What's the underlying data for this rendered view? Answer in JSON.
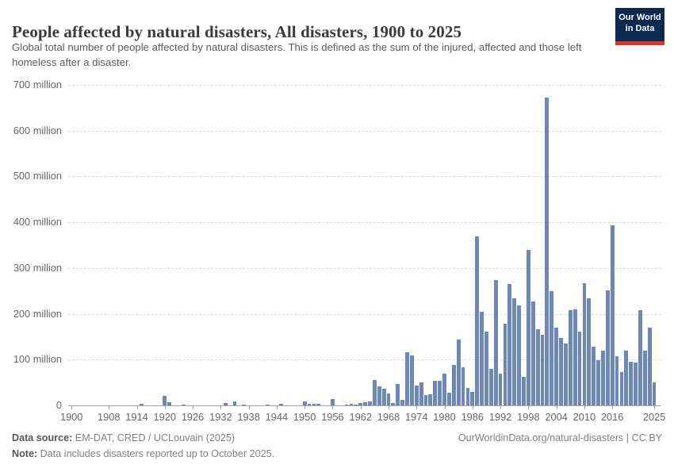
{
  "header": {
    "title": "People affected by natural disasters, All disasters, 1900 to 2025",
    "subtitle": "Global total number of people affected by natural disasters. This is defined as the sum of the injured, affected and those left homeless after a disaster.",
    "logo": {
      "line1": "Our World",
      "line2": "in Data"
    }
  },
  "chart_data": {
    "type": "bar",
    "title": "People affected by natural disasters, All disasters, 1900 to 2025",
    "unit": "million people",
    "xlabel": "",
    "ylabel": "",
    "ylim": [
      0,
      700
    ],
    "grid": "horizontal-dashed",
    "bar_color": "#6d87b6",
    "x_start": 1900,
    "x_end": 2025,
    "x_tick_years": [
      1900,
      1908,
      1914,
      1920,
      1926,
      1932,
      1938,
      1944,
      1950,
      1956,
      1962,
      1968,
      1974,
      1980,
      1986,
      1992,
      1998,
      2004,
      2010,
      2016,
      2025
    ],
    "y_ticks": [
      {
        "value": 0,
        "label": "0"
      },
      {
        "value": 100,
        "label": "100 million"
      },
      {
        "value": 200,
        "label": "200 million"
      },
      {
        "value": 300,
        "label": "300 million"
      },
      {
        "value": 400,
        "label": "400 million"
      },
      {
        "value": 500,
        "label": "500 million"
      },
      {
        "value": 600,
        "label": "600 million"
      },
      {
        "value": 700,
        "label": "700 million"
      }
    ],
    "values_millions": [
      0,
      0,
      0,
      0,
      0,
      0,
      0,
      0,
      0,
      0,
      0,
      0,
      0,
      0,
      0,
      4,
      0,
      0,
      0,
      0,
      20,
      7,
      0,
      0,
      2,
      0,
      0,
      0,
      0,
      0,
      0,
      0,
      0,
      5,
      0,
      9,
      0,
      2,
      0,
      0,
      0,
      0,
      2,
      0,
      0,
      3,
      0,
      0,
      0,
      0,
      9,
      3,
      3,
      4,
      0,
      0,
      14,
      0,
      0,
      2,
      3,
      2,
      5,
      7,
      9,
      55,
      42,
      36,
      26,
      5,
      47,
      12,
      116,
      110,
      43,
      51,
      22,
      25,
      53,
      54,
      70,
      28,
      88,
      144,
      84,
      38,
      29,
      369,
      205,
      162,
      79,
      273,
      69,
      178,
      265,
      234,
      218,
      63,
      340,
      227,
      166,
      155,
      672,
      250,
      169,
      147,
      136,
      208,
      209,
      162,
      267,
      234,
      129,
      99,
      120,
      252,
      393,
      107,
      72,
      119,
      95,
      93,
      208,
      120,
      170,
      51
    ]
  },
  "footer": {
    "source_label": "Data source:",
    "source_text": " EM-DAT, CRED / UCLouvain (2025)",
    "attribution_url": "OurWorldinData.org/natural-disasters",
    "separator": " | ",
    "license": "CC BY",
    "note_label": "Note:",
    "note_text": " Data includes disasters reported up to October 2025."
  }
}
